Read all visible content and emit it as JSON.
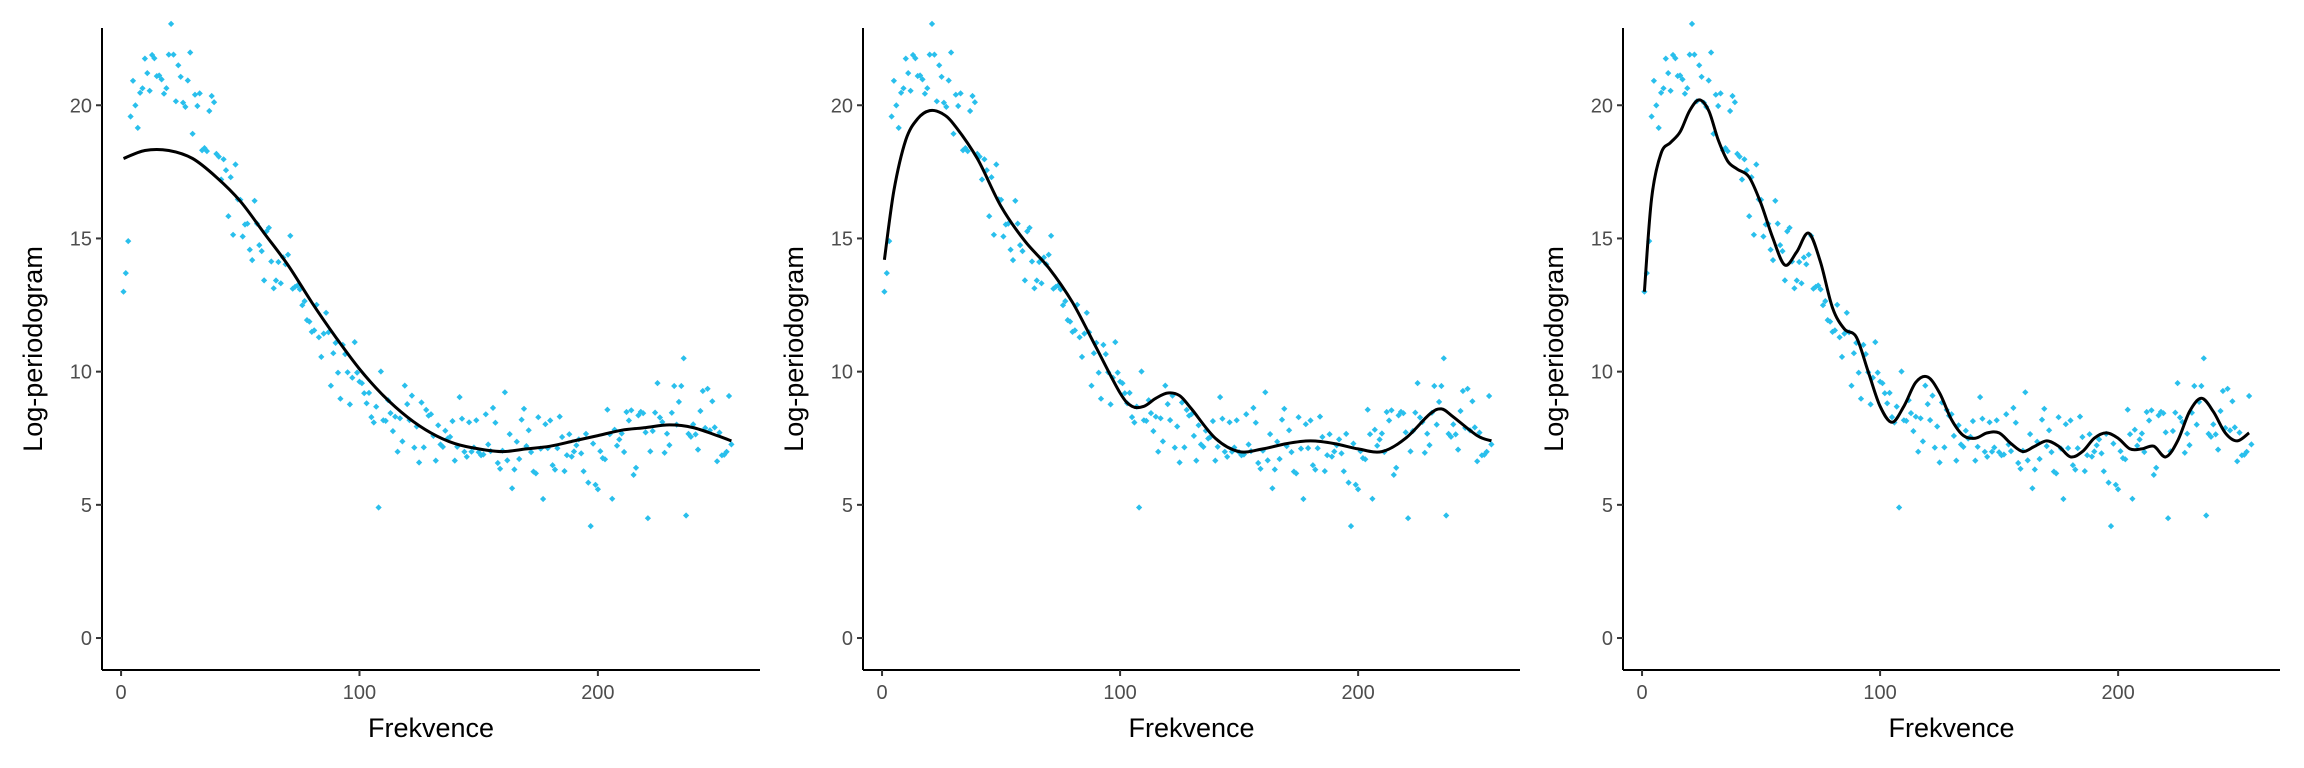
{
  "colors": {
    "points": "#29bfec",
    "fit_line": "#000000",
    "axis": "#000000",
    "tick_text": "#4d4d4d"
  },
  "chart_data": [
    {
      "type": "scatter",
      "title": "",
      "xlabel": "Frekvence",
      "ylabel": "Log-periodogram",
      "xlim": [
        -8,
        268
      ],
      "ylim": [
        -1.2,
        22.9
      ],
      "xticks": [
        0,
        100,
        200
      ],
      "yticks": [
        0,
        5,
        10,
        15,
        20
      ],
      "xtick_labels": [
        "0",
        "100",
        "200"
      ],
      "ytick_labels": [
        "0",
        "5",
        "10",
        "15",
        "20"
      ],
      "grid": false,
      "legend": "none",
      "series": [
        {
          "type": "line",
          "x": [
            1,
            10,
            20,
            30,
            40,
            50,
            60,
            70,
            80,
            90,
            100,
            110,
            120,
            130,
            140,
            150,
            160,
            170,
            180,
            190,
            200,
            210,
            220,
            230,
            240,
            250,
            256
          ],
          "y": [
            18,
            18.3,
            18.3,
            18,
            17.3,
            16.4,
            15.2,
            14,
            12.6,
            11.3,
            10.1,
            9.1,
            8.3,
            7.7,
            7.3,
            7.1,
            7.0,
            7.1,
            7.2,
            7.4,
            7.6,
            7.8,
            7.9,
            8.0,
            7.9,
            7.6,
            7.4
          ]
        }
      ]
    },
    {
      "type": "scatter",
      "title": "",
      "xlabel": "Frekvence",
      "ylabel": "Log-periodogram",
      "xlim": [
        -8,
        268
      ],
      "ylim": [
        -1.2,
        22.9
      ],
      "xticks": [
        0,
        100,
        200
      ],
      "yticks": [
        0,
        5,
        10,
        15,
        20
      ],
      "xtick_labels": [
        "0",
        "100",
        "200"
      ],
      "ytick_labels": [
        "0",
        "5",
        "10",
        "15",
        "20"
      ],
      "grid": false,
      "legend": "none",
      "series": [
        {
          "type": "line",
          "x": [
            1,
            5,
            10,
            15,
            20,
            25,
            30,
            40,
            50,
            60,
            70,
            80,
            90,
            100,
            105,
            110,
            115,
            120,
            125,
            130,
            140,
            150,
            160,
            170,
            180,
            190,
            200,
            210,
            220,
            230,
            235,
            240,
            250,
            256
          ],
          "y": [
            14.2,
            16.8,
            18.7,
            19.5,
            19.8,
            19.7,
            19.3,
            18,
            16.2,
            14.9,
            13.9,
            12.6,
            10.9,
            9.2,
            8.7,
            8.7,
            9.0,
            9.2,
            9.1,
            8.6,
            7.5,
            7.0,
            7.1,
            7.3,
            7.4,
            7.3,
            7.1,
            7.0,
            7.5,
            8.4,
            8.6,
            8.3,
            7.6,
            7.4
          ]
        }
      ]
    },
    {
      "type": "scatter",
      "title": "",
      "xlabel": "Frekvence",
      "ylabel": "Log-periodogram",
      "xlim": [
        -8,
        268
      ],
      "ylim": [
        -1.2,
        22.9
      ],
      "xticks": [
        0,
        100,
        200
      ],
      "yticks": [
        0,
        5,
        10,
        15,
        20
      ],
      "xtick_labels": [
        "0",
        "100",
        "200"
      ],
      "ytick_labels": [
        "0",
        "5",
        "10",
        "15",
        "20"
      ],
      "grid": false,
      "legend": "none",
      "series": [
        {
          "type": "line",
          "x": [
            1,
            4,
            8,
            12,
            16,
            20,
            24,
            28,
            32,
            36,
            40,
            45,
            50,
            55,
            60,
            65,
            70,
            75,
            80,
            85,
            90,
            95,
            100,
            105,
            110,
            115,
            120,
            125,
            130,
            135,
            140,
            145,
            150,
            155,
            160,
            165,
            170,
            175,
            180,
            185,
            190,
            195,
            200,
            205,
            210,
            215,
            220,
            225,
            230,
            235,
            240,
            245,
            250,
            255
          ],
          "y": [
            13,
            16.5,
            18.2,
            18.6,
            19.0,
            19.8,
            20.2,
            19.8,
            18.7,
            17.9,
            17.6,
            17.3,
            16.3,
            15.0,
            14.0,
            14.5,
            15.2,
            14.1,
            12.4,
            11.6,
            11.3,
            10.0,
            8.7,
            8.1,
            8.7,
            9.6,
            9.8,
            9.2,
            8.2,
            7.6,
            7.5,
            7.7,
            7.7,
            7.3,
            7.0,
            7.2,
            7.4,
            7.2,
            6.8,
            7.0,
            7.5,
            7.7,
            7.5,
            7.1,
            7.1,
            7.2,
            6.8,
            7.4,
            8.5,
            9.0,
            8.5,
            7.7,
            7.4,
            7.7
          ]
        }
      ]
    }
  ]
}
